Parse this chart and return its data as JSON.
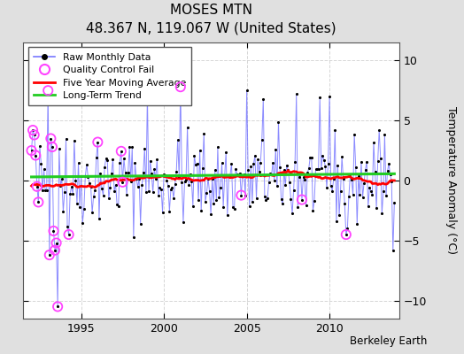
{
  "title": "MOSES MTN",
  "subtitle": "48.367 N, 119.067 W (United States)",
  "ylabel": "Temperature Anomaly (°C)",
  "credit": "Berkeley Earth",
  "xlim": [
    1991.5,
    2014.2
  ],
  "ylim": [
    -11.5,
    11.5
  ],
  "yticks": [
    -10,
    -5,
    0,
    5,
    10
  ],
  "xticks": [
    1995,
    2000,
    2005,
    2010
  ],
  "outer_bg": "#e0e0e0",
  "plot_bg": "#ffffff",
  "line_color": "#7777ff",
  "dot_color": "#000000",
  "ma_color": "#ff0000",
  "trend_color": "#22cc22",
  "qc_color": "#ff44ff",
  "grid_color": "#cccccc",
  "start_year": 1992,
  "n_months": 264
}
